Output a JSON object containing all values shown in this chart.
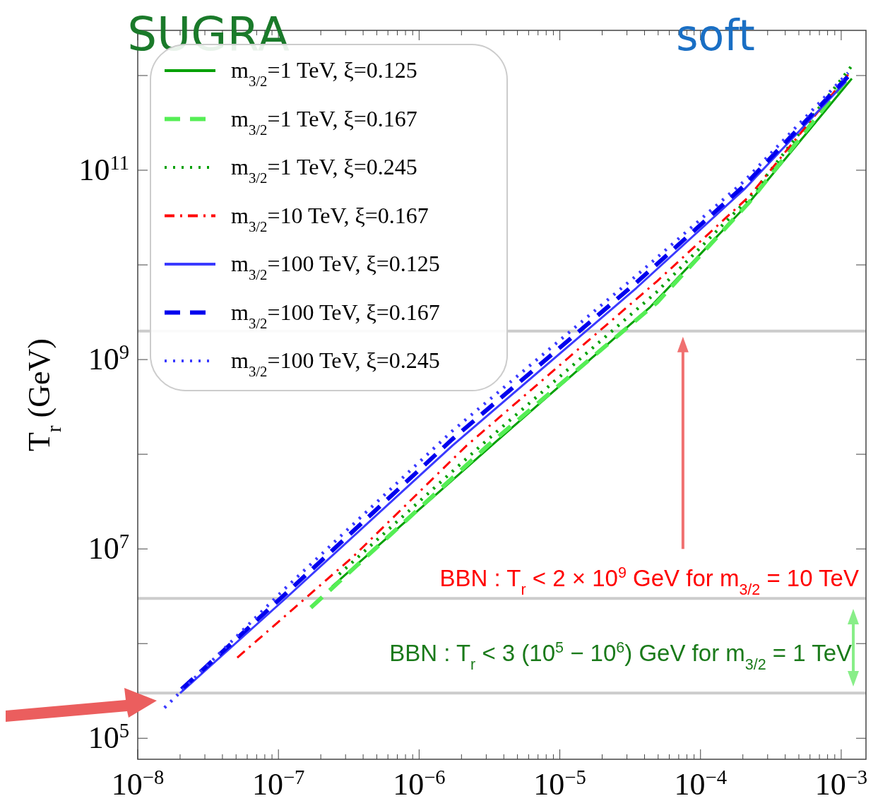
{
  "chart_data": {
    "type": "line",
    "ylabel": "T$_{r}$ (GeV)",
    "log": "xy",
    "grid": false,
    "legend": "top left",
    "xlim": [
      1e-08,
      0.0015
    ],
    "ylim": [
      60000.0,
      3000000000000.0
    ],
    "xticks": [
      {
        "value": 1e-08,
        "label": "10$^{−8}$"
      },
      {
        "value": 1e-07,
        "label": "10$^{−7}$"
      },
      {
        "value": 1e-06,
        "label": "10$^{−6}$"
      },
      {
        "value": 1e-05,
        "label": "10$^{−5}$"
      },
      {
        "value": 0.0001,
        "label": "10$^{−4}$"
      },
      {
        "value": 0.001,
        "label": "10$^{−3}$"
      }
    ],
    "yticks": [
      {
        "value": 100000.0,
        "label": "10$^{5}$"
      },
      {
        "value": 1000000.0,
        "label": null
      },
      {
        "value": 10000000.0,
        "label": "10$^{7}$"
      },
      {
        "value": 100000000.0,
        "label": null
      },
      {
        "value": 1000000000.0,
        "label": "10$^{9}$"
      },
      {
        "value": 10000000000.0,
        "label": null
      },
      {
        "value": 100000000000.0,
        "label": "10$^{11}$"
      },
      {
        "value": 1000000000000.0,
        "label": null
      }
    ],
    "series": [
      {
        "name": "m$_{3/2}$=1 TeV, ξ=0.125",
        "color": "#00a000",
        "line_style": "solid",
        "x": [
          2.4e-07,
          3.26e-06,
          4.4e-05,
          0.00022,
          0.00119
        ],
        "values": [
          4000000.0,
          123000000.0,
          3600000000.0,
          45000000000.0,
          930000000000.0
        ]
      },
      {
        "name": "m$_{3/2}$=1 TeV, ξ=0.167",
        "color": "#55ee55",
        "line_style": "dashed",
        "x": [
          1.7e-07,
          3.07e-06,
          4.9e-05,
          0.000222,
          0.00119
        ],
        "values": [
          2400000.0,
          123000000.0,
          4000000000.0,
          46000000000.0,
          1070000000000.0
        ]
      },
      {
        "name": "m$_{3/2}$=1 TeV, ξ=0.245",
        "color": "#00a000",
        "line_style": "dotted",
        "x": [
          2.7e-07,
          2.74e-06,
          4.9e-05,
          0.000222,
          0.00119
        ],
        "values": [
          5400000.0,
          123000000.0,
          5200000000.0,
          51000000000.0,
          1270000000000.0
        ]
      },
      {
        "name": "m$_{3/2}$=10 TeV, ξ=0.167",
        "color": "#ff0000",
        "line_style": "dashdot",
        "x": [
          5.1e-08,
          3.4e-07,
          2.17e-06,
          4.9e-05,
          0.000222,
          0.00112
        ],
        "values": [
          710000.0,
          8300000.0,
          123000000.0,
          6700000000.0,
          53000000000.0,
          1020000000000.0
        ]
      },
      {
        "name": "m$_{3/2}$=100 TeV, ξ=0.125",
        "color": "#3a3aff",
        "line_style": "solid",
        "x": [
          2e-08,
          1.11e-07,
          1.72e-06,
          3.5e-05,
          0.000205,
          0.00108
        ],
        "values": [
          300000.0,
          2950000.0,
          123000000.0,
          5700000000.0,
          63000000000.0,
          860000000000.0
        ]
      },
      {
        "name": "m$_{3/2}$=100 TeV, ξ=0.167",
        "color": "#0000ee",
        "line_style": "dashed",
        "x": [
          2.05e-08,
          1.11e-07,
          1.72e-06,
          3.5e-05,
          0.000205,
          0.00112
        ],
        "values": [
          330000.0,
          3300000.0,
          144000000.0,
          6500000000.0,
          69000000000.0,
          980000000000.0
        ]
      },
      {
        "name": "m$_{3/2}$=100 TeV, ξ=0.245",
        "color": "#3a3aff",
        "line_style": "dotted",
        "x": [
          1.55e-08,
          1.11e-07,
          1.72e-06,
          3.5e-05,
          0.000205,
          0.00112
        ],
        "values": [
          210000.0,
          3800000.0,
          176000000.0,
          7700000000.0,
          77000000000.0,
          1070000000000.0
        ]
      }
    ],
    "ref_lines": [
      {
        "axis": "y",
        "value": 2000000000.0,
        "color": "#cccccc"
      },
      {
        "axis": "y",
        "value": 3000000.0,
        "color": "#cccccc"
      },
      {
        "axis": "y",
        "value": 300000.0,
        "color": "#cccccc"
      }
    ],
    "annotations": [
      "SUGRA",
      "soft",
      "BBN : T$_{r}$ < 2 × 10$^{9}$ GeV for m$_{3/2}$ = 10 TeV",
      "BBN : T$_{r}$ < 3 (10$^{5}$ − 10$^{6}$) GeV for m$_{3/2}$ = 1 TeV"
    ]
  }
}
